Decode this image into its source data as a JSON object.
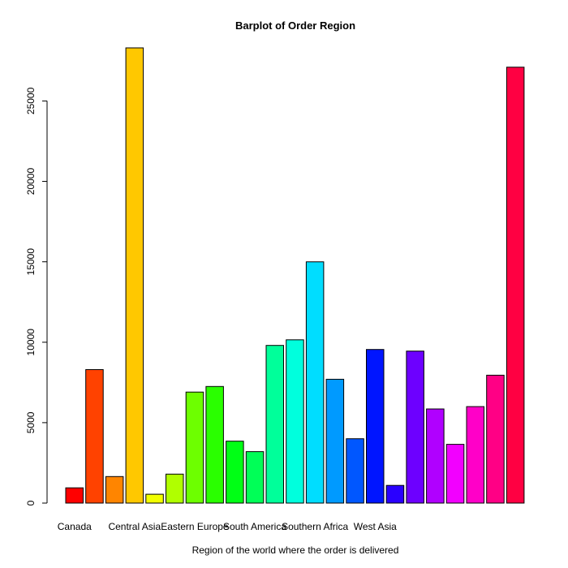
{
  "chart_data": {
    "type": "bar",
    "title": "Barplot of Order Region",
    "xlabel": "Region of the world where the order is delivered",
    "ylabel": "",
    "ylim": [
      0,
      28300
    ],
    "yticks": [
      0,
      5000,
      10000,
      15000,
      20000,
      25000
    ],
    "grid": false,
    "legend": "none",
    "categories": [
      "Canada",
      "",
      "",
      "Central Asia",
      "",
      "",
      "Eastern Europe",
      "",
      "",
      "South America",
      "",
      "",
      "Southern Africa",
      "",
      "",
      "West Asia",
      "",
      "",
      "",
      "",
      "",
      "",
      ""
    ],
    "values": [
      950,
      8300,
      1650,
      28300,
      550,
      1800,
      6900,
      7250,
      3850,
      3200,
      9800,
      10150,
      15000,
      7700,
      4000,
      9550,
      1100,
      9450,
      5850,
      3650,
      6000,
      7950,
      27100
    ],
    "colors": [
      "#FF0000",
      "#FF4200",
      "#FF8500",
      "#FFC800",
      "#F2FF00",
      "#B0FF00",
      "#6DFF00",
      "#2AFF00",
      "#00FF15",
      "#00FF57",
      "#00FF9A",
      "#00FFDD",
      "#00DDFF",
      "#009AFF",
      "#0057FF",
      "#0015FF",
      "#2A00FF",
      "#6D00FF",
      "#B000FF",
      "#F200FF",
      "#FF00C8",
      "#FF0085",
      "#FF0042"
    ]
  }
}
